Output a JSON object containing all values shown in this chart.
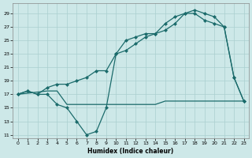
{
  "xlabel": "Humidex (Indice chaleur)",
  "bg_color": "#cde8e8",
  "grid_color": "#aacfcf",
  "line_color": "#1b6b6b",
  "xlim": [
    -0.5,
    23.5
  ],
  "ylim": [
    10.5,
    30.5
  ],
  "xticks": [
    0,
    1,
    2,
    3,
    4,
    5,
    6,
    7,
    8,
    9,
    10,
    11,
    12,
    13,
    14,
    15,
    16,
    17,
    18,
    19,
    20,
    21,
    22,
    23
  ],
  "yticks": [
    11,
    13,
    15,
    17,
    19,
    21,
    23,
    25,
    27,
    29
  ],
  "curve_low_x": [
    0,
    1,
    2,
    3,
    4,
    5,
    6,
    7,
    8,
    9,
    10,
    11,
    12,
    13,
    14,
    15,
    16,
    17,
    18,
    19,
    20,
    21,
    22,
    23
  ],
  "curve_low_y": [
    17,
    17.5,
    17,
    17,
    15.5,
    15,
    13,
    11,
    11.5,
    15,
    23,
    25,
    25.5,
    26,
    26,
    26.5,
    27.5,
    29,
    29,
    28,
    27.5,
    27,
    19.5,
    16
  ],
  "curve_high_x": [
    0,
    1,
    2,
    3,
    4,
    5,
    6,
    7,
    8,
    9,
    10,
    11,
    12,
    13,
    14,
    15,
    16,
    17,
    18,
    19,
    20,
    21,
    22,
    23
  ],
  "curve_high_y": [
    17,
    17.5,
    17,
    18,
    18.5,
    18.5,
    19,
    19.5,
    20.5,
    20.5,
    23,
    23.5,
    24.5,
    25.5,
    26,
    27.5,
    28.5,
    29,
    29.5,
    29,
    28.5,
    27,
    19.5,
    16
  ],
  "line_flat_x": [
    0,
    3,
    4,
    5,
    9,
    10,
    14,
    15,
    21,
    22,
    23
  ],
  "line_flat_y": [
    17,
    17.5,
    17.5,
    15.5,
    15.5,
    15.5,
    15.5,
    16,
    16,
    16,
    16
  ]
}
